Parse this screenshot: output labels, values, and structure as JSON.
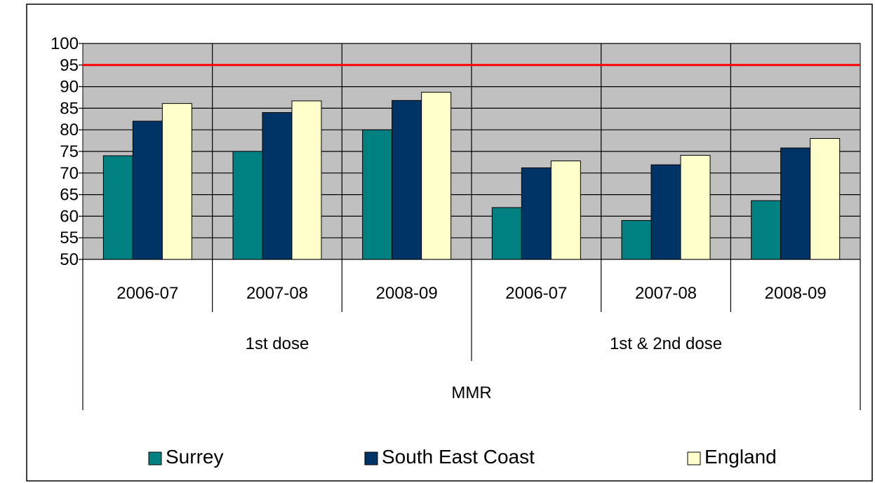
{
  "chart_data": {
    "type": "bar",
    "title": "",
    "xlabel": "",
    "ylabel": "",
    "ylim": [
      50,
      100
    ],
    "yticks": [
      50,
      55,
      60,
      65,
      70,
      75,
      80,
      85,
      90,
      95,
      100
    ],
    "grid": true,
    "legend": "bottom",
    "reference_line": {
      "value": 95,
      "color": "#ff0000"
    },
    "categories": [
      "2006-07",
      "2007-08",
      "2008-09",
      "2006-07",
      "2007-08",
      "2008-09"
    ],
    "groups": [
      {
        "label": "1st dose",
        "span": [
          0,
          2
        ]
      },
      {
        "label": "1st & 2nd dose",
        "span": [
          3,
          5
        ]
      }
    ],
    "supergroup": "MMR",
    "series": [
      {
        "name": "Surrey",
        "color": "#008080",
        "values": [
          74,
          75,
          80,
          62,
          59,
          63.6
        ]
      },
      {
        "name": "South East Coast",
        "color": "#003366",
        "values": [
          82,
          84,
          86.8,
          71.2,
          71.9,
          75.8
        ]
      },
      {
        "name": "England",
        "color": "#ffffcc",
        "values": [
          86.1,
          86.7,
          88.7,
          72.8,
          74.1,
          78
        ]
      }
    ],
    "colors": {
      "plot_bg": "#c0c0c0",
      "grid": "#000000"
    }
  }
}
